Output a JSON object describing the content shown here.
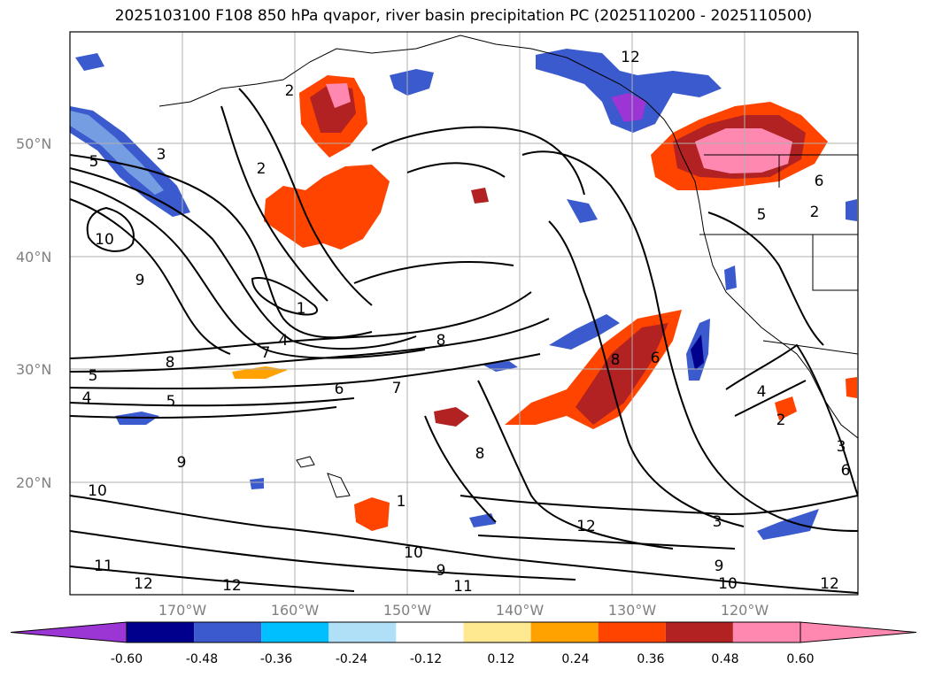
{
  "title": "2025103100 F108 850 hPa qvapor, river basin precipitation PC (2025110200 - 2025110500)",
  "lon_labels": [
    "170°W",
    "160°W",
    "150°W",
    "140°W",
    "130°W",
    "120°W"
  ],
  "lat_labels": [
    "50°N",
    "40°N",
    "30°N",
    "20°N"
  ],
  "colorbar": {
    "colors": [
      "#9b35d4",
      "#00008c",
      "#3a5acd",
      "#00bfff",
      "#b0e0f8",
      "#ffffff",
      "#ffe990",
      "#ffa200",
      "#ff4400",
      "#b22222",
      "#ff88b0",
      "#ff88b0"
    ],
    "labels": [
      "-0.60",
      "-0.48",
      "-0.36",
      "-0.24",
      "-0.12",
      "0.12",
      "0.24",
      "0.36",
      "0.48",
      "0.60"
    ]
  },
  "contour_labels": [
    "2",
    "2",
    "5",
    "3",
    "10",
    "9",
    "1",
    "4",
    "7",
    "8",
    "8",
    "6",
    "5",
    "4",
    "5",
    "7",
    "9",
    "8",
    "10",
    "11",
    "12",
    "12",
    "10",
    "9",
    "11",
    "12",
    "8",
    "6",
    "4",
    "2",
    "3",
    "3",
    "6",
    "6",
    "5",
    "2",
    "9",
    "10",
    "12",
    "12",
    "1"
  ]
}
